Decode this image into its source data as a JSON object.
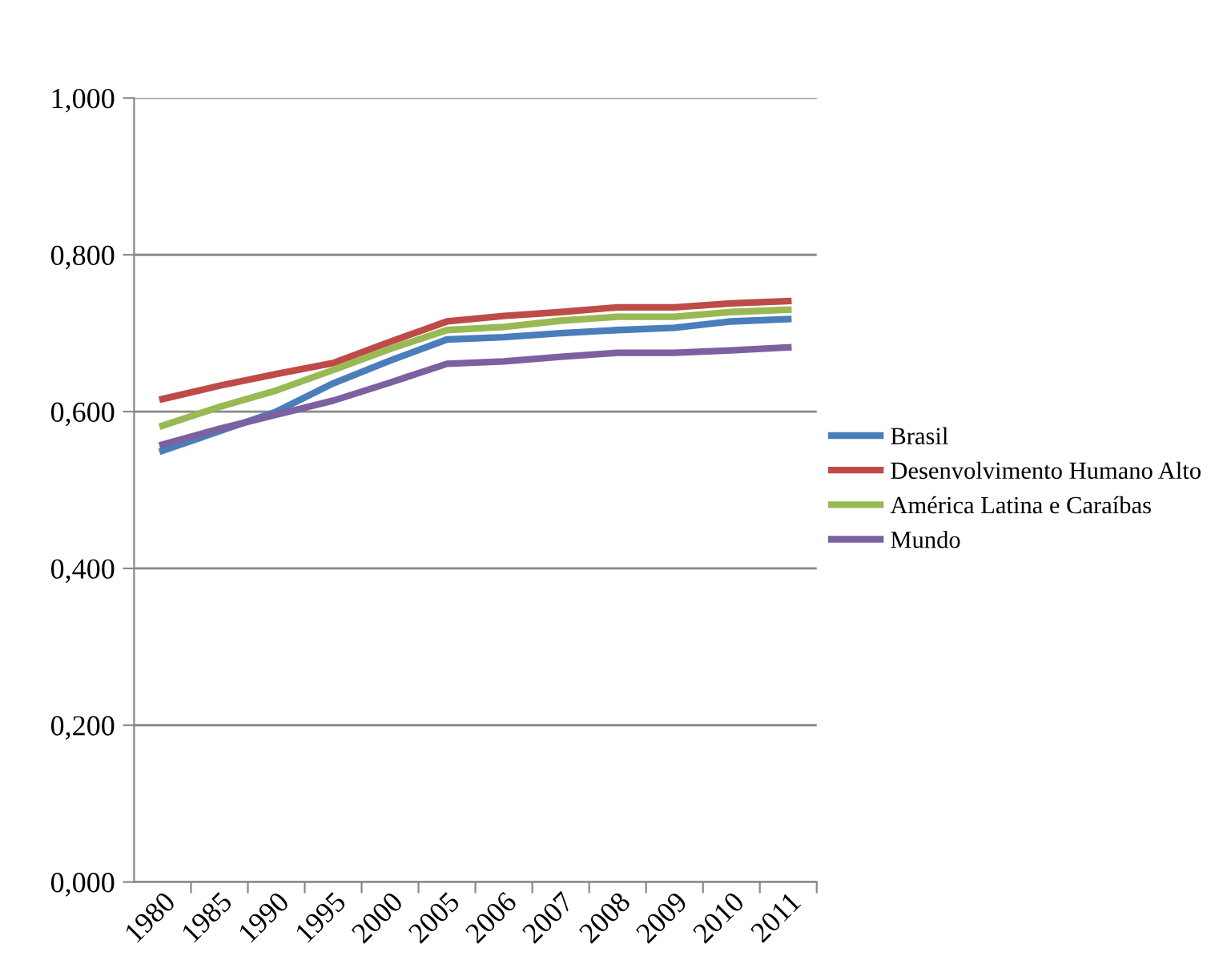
{
  "chart_data": {
    "type": "line",
    "categories": [
      "1980",
      "1985",
      "1990",
      "1995",
      "2000",
      "2005",
      "2006",
      "2007",
      "2008",
      "2009",
      "2010",
      "2011"
    ],
    "series": [
      {
        "name": "Brasil",
        "color": "#4a7ebb",
        "values": [
          0.55,
          0.575,
          0.6,
          0.636,
          0.665,
          0.692,
          0.695,
          0.7,
          0.704,
          0.707,
          0.715,
          0.718
        ]
      },
      {
        "name": "Desenvolvimento Humano Alto",
        "color": "#be4b48",
        "values": [
          0.616,
          0.633,
          0.648,
          0.662,
          0.689,
          0.715,
          0.722,
          0.727,
          0.733,
          0.733,
          0.738,
          0.741
        ]
      },
      {
        "name": "América Latina e Caraíbas",
        "color": "#98b954",
        "values": [
          0.582,
          0.606,
          0.627,
          0.653,
          0.68,
          0.704,
          0.708,
          0.716,
          0.721,
          0.721,
          0.727,
          0.73
        ]
      },
      {
        "name": "Mundo",
        "color": "#7d60a0",
        "values": [
          0.558,
          0.578,
          0.596,
          0.614,
          0.637,
          0.661,
          0.664,
          0.67,
          0.675,
          0.675,
          0.678,
          0.682
        ]
      }
    ],
    "ylim": [
      0,
      1
    ],
    "yticks": [
      {
        "value": 0,
        "label": "0,000"
      },
      {
        "value": 0.2,
        "label": "0,200"
      },
      {
        "value": 0.4,
        "label": "0,400"
      },
      {
        "value": 0.6,
        "label": "0,600"
      },
      {
        "value": 0.8,
        "label": "0,800"
      },
      {
        "value": 1,
        "label": "1,000"
      }
    ],
    "grid": "y",
    "legend": "right",
    "marker": "none",
    "line_style": "solid"
  }
}
